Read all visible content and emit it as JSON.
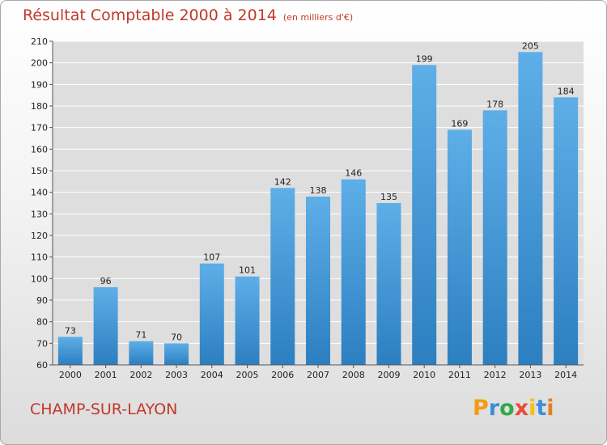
{
  "title": "Résultat Comptable 2000 à 2014",
  "subtitle": "(en milliers d'€)",
  "city": "CHAMP-SUR-LAYON",
  "brand": "Proxiti",
  "colors": {
    "title": "#c0392b",
    "bar_light": "#5eaee8",
    "bar_dark": "#2c7fc0",
    "grid": "#ffffff",
    "plot_bg": "#dedede"
  },
  "chart_data": {
    "type": "bar",
    "categories": [
      "2000",
      "2001",
      "2002",
      "2003",
      "2004",
      "2005",
      "2006",
      "2007",
      "2008",
      "2009",
      "2010",
      "2011",
      "2012",
      "2013",
      "2014"
    ],
    "values": [
      73,
      96,
      71,
      70,
      107,
      101,
      142,
      138,
      146,
      135,
      199,
      169,
      178,
      205,
      184
    ],
    "ylim": [
      60,
      210
    ],
    "yticks": [
      60,
      70,
      80,
      90,
      100,
      110,
      120,
      130,
      140,
      150,
      160,
      170,
      180,
      190,
      200,
      210
    ],
    "grid": true,
    "xlabel": "",
    "ylabel": ""
  }
}
